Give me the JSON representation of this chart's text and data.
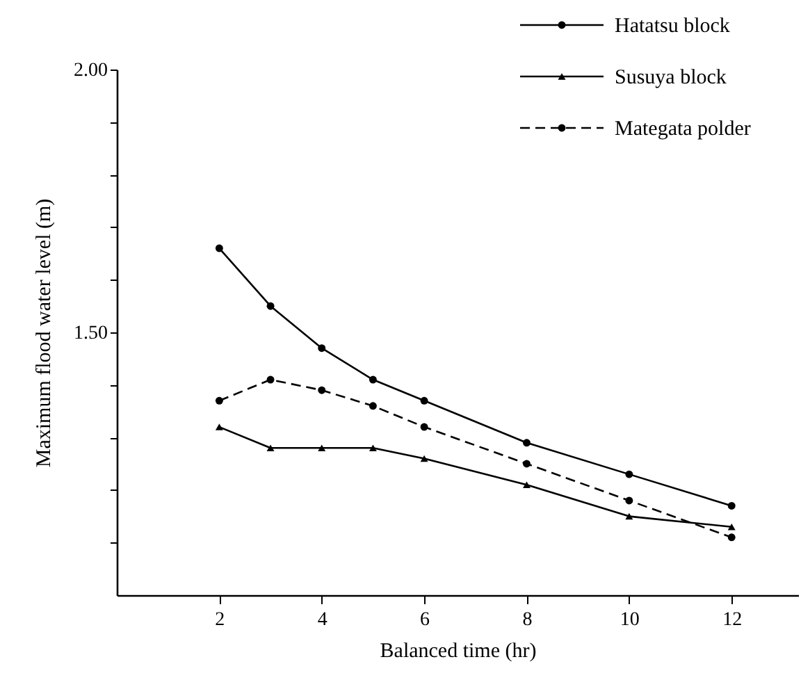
{
  "chart_data": {
    "type": "line",
    "xlabel": "Balanced time (hr)",
    "ylabel": "Maximum flood water level (m)",
    "x": [
      2,
      3,
      4,
      5,
      6,
      8,
      10,
      12
    ],
    "series": [
      {
        "name": "Hatatsu block",
        "color": "#000000",
        "marker": "circle",
        "line_style": "solid",
        "values": [
          1.66,
          1.55,
          1.47,
          1.41,
          1.37,
          1.29,
          1.23,
          1.17
        ]
      },
      {
        "name": "Susuya block",
        "color": "#000000",
        "marker": "triangle",
        "line_style": "solid",
        "values": [
          1.32,
          1.28,
          1.28,
          1.28,
          1.26,
          1.21,
          1.15,
          1.13
        ]
      },
      {
        "name": "Mategata polder",
        "color": "#000000",
        "marker": "circle",
        "line_style": "dashed",
        "values": [
          1.37,
          1.41,
          1.39,
          1.36,
          1.32,
          1.25,
          1.18,
          1.11
        ]
      }
    ],
    "xlim": [
      0,
      13.3
    ],
    "xticks": [
      2,
      4,
      6,
      8,
      10,
      12
    ],
    "ylim": [
      1.0,
      2.0
    ],
    "yticks": [
      {
        "value": 2.0,
        "label": "2.00"
      },
      {
        "value": 1.9,
        "label": null
      },
      {
        "value": 1.8,
        "label": null
      },
      {
        "value": 1.7,
        "label": null
      },
      {
        "value": 1.6,
        "label": null
      },
      {
        "value": 1.5,
        "label": "1.50"
      },
      {
        "value": 1.4,
        "label": null
      },
      {
        "value": 1.3,
        "label": null
      },
      {
        "value": 1.2,
        "label": null
      },
      {
        "value": 1.1,
        "label": null
      }
    ],
    "grid": false,
    "legend": "top right"
  }
}
